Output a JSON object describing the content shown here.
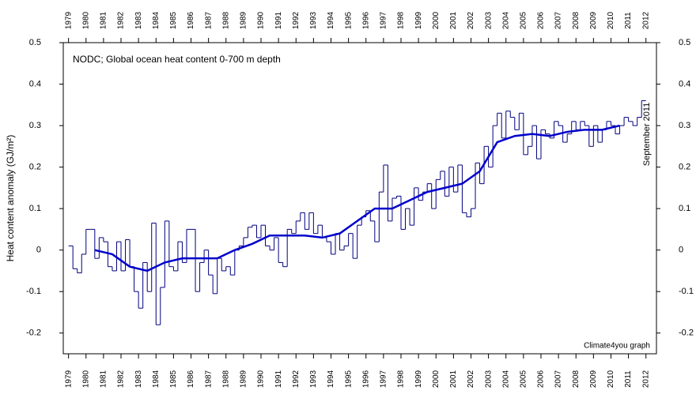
{
  "chart_data": {
    "type": "step",
    "title": "NODC; Global ocean heat content 0-700 m depth",
    "ylabel": "Heat content anomaly (GJ/m²)",
    "annotations": [
      "September 2011",
      "Climate4you graph"
    ],
    "annotation_color": "#0000cc",
    "xlim": [
      1978.7,
      2012.6
    ],
    "xticks": [
      1979,
      1980,
      1981,
      1982,
      1983,
      1984,
      1985,
      1986,
      1987,
      1988,
      1989,
      1990,
      1991,
      1992,
      1993,
      1994,
      1995,
      1996,
      1997,
      1998,
      1999,
      2000,
      2001,
      2002,
      2003,
      2004,
      2005,
      2006,
      2007,
      2008,
      2009,
      2010,
      2011,
      2012
    ],
    "ylim": [
      -0.25,
      0.5
    ],
    "yticks": [
      0.5,
      0.4,
      0.3,
      0.2,
      0.1,
      0,
      -0.1,
      -0.2
    ],
    "series": [
      {
        "color": "#000080",
        "style": "step",
        "x": [
          1979,
          1979.25,
          1979.5,
          1979.75,
          1980,
          1980.25,
          1980.5,
          1980.75,
          1981,
          1981.25,
          1981.5,
          1981.75,
          1982,
          1982.25,
          1982.5,
          1982.75,
          1983,
          1983.25,
          1983.5,
          1983.75,
          1984,
          1984.25,
          1984.5,
          1984.75,
          1985,
          1985.25,
          1985.5,
          1985.75,
          1986,
          1986.25,
          1986.5,
          1986.75,
          1987,
          1987.25,
          1987.5,
          1987.75,
          1988,
          1988.25,
          1988.5,
          1988.75,
          1989,
          1989.25,
          1989.5,
          1989.75,
          1990,
          1990.25,
          1990.5,
          1990.75,
          1991,
          1991.25,
          1991.5,
          1991.75,
          1992,
          1992.25,
          1992.5,
          1992.75,
          1993,
          1993.25,
          1993.5,
          1993.75,
          1994,
          1994.25,
          1994.5,
          1994.75,
          1995,
          1995.25,
          1995.5,
          1995.75,
          1996,
          1996.25,
          1996.5,
          1996.75,
          1997,
          1997.25,
          1997.5,
          1997.75,
          1998,
          1998.25,
          1998.5,
          1998.75,
          1999,
          1999.25,
          1999.5,
          1999.75,
          2000,
          2000.25,
          2000.5,
          2000.75,
          2001,
          2001.25,
          2001.5,
          2001.75,
          2002,
          2002.25,
          2002.5,
          2002.75,
          2003,
          2003.25,
          2003.5,
          2003.75,
          2004,
          2004.25,
          2004.5,
          2004.75,
          2005,
          2005.25,
          2005.5,
          2005.75,
          2006,
          2006.25,
          2006.5,
          2006.75,
          2007,
          2007.25,
          2007.5,
          2007.75,
          2008,
          2008.25,
          2008.5,
          2008.75,
          2009,
          2009.25,
          2009.5,
          2009.75,
          2010,
          2010.25,
          2010.5,
          2010.75,
          2011,
          2011.25,
          2011.5,
          2011.75
        ],
        "values": [
          0.01,
          -0.045,
          -0.055,
          -0.01,
          0.05,
          0.05,
          -0.02,
          0.03,
          0.02,
          -0.04,
          -0.05,
          0.02,
          -0.05,
          0.025,
          -0.04,
          -0.1,
          -0.14,
          -0.03,
          -0.1,
          0.065,
          -0.18,
          -0.09,
          0.07,
          -0.04,
          -0.05,
          0.02,
          -0.03,
          0.05,
          0.05,
          -0.1,
          -0.03,
          0.0,
          -0.06,
          -0.105,
          -0.02,
          -0.05,
          -0.04,
          -0.06,
          0.0,
          0.01,
          0.03,
          0.055,
          0.06,
          0.03,
          0.06,
          0.01,
          0.0,
          0.03,
          -0.03,
          -0.04,
          0.05,
          0.04,
          0.07,
          0.09,
          0.05,
          0.09,
          0.04,
          0.06,
          0.03,
          0.02,
          -0.01,
          0.04,
          0.0,
          0.01,
          0.04,
          -0.02,
          0.06,
          0.08,
          0.095,
          0.07,
          0.02,
          0.14,
          0.205,
          0.07,
          0.125,
          0.13,
          0.05,
          0.1,
          0.06,
          0.15,
          0.12,
          0.14,
          0.16,
          0.1,
          0.17,
          0.19,
          0.13,
          0.2,
          0.14,
          0.205,
          0.09,
          0.08,
          0.1,
          0.21,
          0.16,
          0.25,
          0.2,
          0.3,
          0.33,
          0.27,
          0.335,
          0.32,
          0.29,
          0.33,
          0.23,
          0.25,
          0.3,
          0.22,
          0.29,
          0.28,
          0.27,
          0.31,
          0.3,
          0.26,
          0.28,
          0.31,
          0.29,
          0.31,
          0.3,
          0.25,
          0.3,
          0.26,
          0.29,
          0.31,
          0.3,
          0.28,
          0.3,
          0.32,
          0.31,
          0.3,
          0.32,
          0.36
        ]
      },
      {
        "color": "#0000cc",
        "style": "line",
        "x": [
          1980.5,
          1981.5,
          1982.5,
          1983.5,
          1984.5,
          1985.5,
          1986.5,
          1987.5,
          1988.5,
          1989.5,
          1990.5,
          1991.5,
          1992.5,
          1993.5,
          1994.5,
          1995.5,
          1996.5,
          1997.5,
          1998.5,
          1999.5,
          2000.5,
          2001.5,
          2002.5,
          2003.5,
          2004.5,
          2005.5,
          2006.5,
          2007.5,
          2008.5,
          2009.5,
          2010.5
        ],
        "values": [
          0.0,
          -0.01,
          -0.04,
          -0.05,
          -0.03,
          -0.02,
          -0.02,
          -0.02,
          0.0,
          0.015,
          0.035,
          0.035,
          0.035,
          0.03,
          0.04,
          0.07,
          0.1,
          0.1,
          0.12,
          0.14,
          0.15,
          0.16,
          0.19,
          0.26,
          0.275,
          0.28,
          0.275,
          0.285,
          0.29,
          0.29,
          0.3
        ]
      }
    ]
  }
}
